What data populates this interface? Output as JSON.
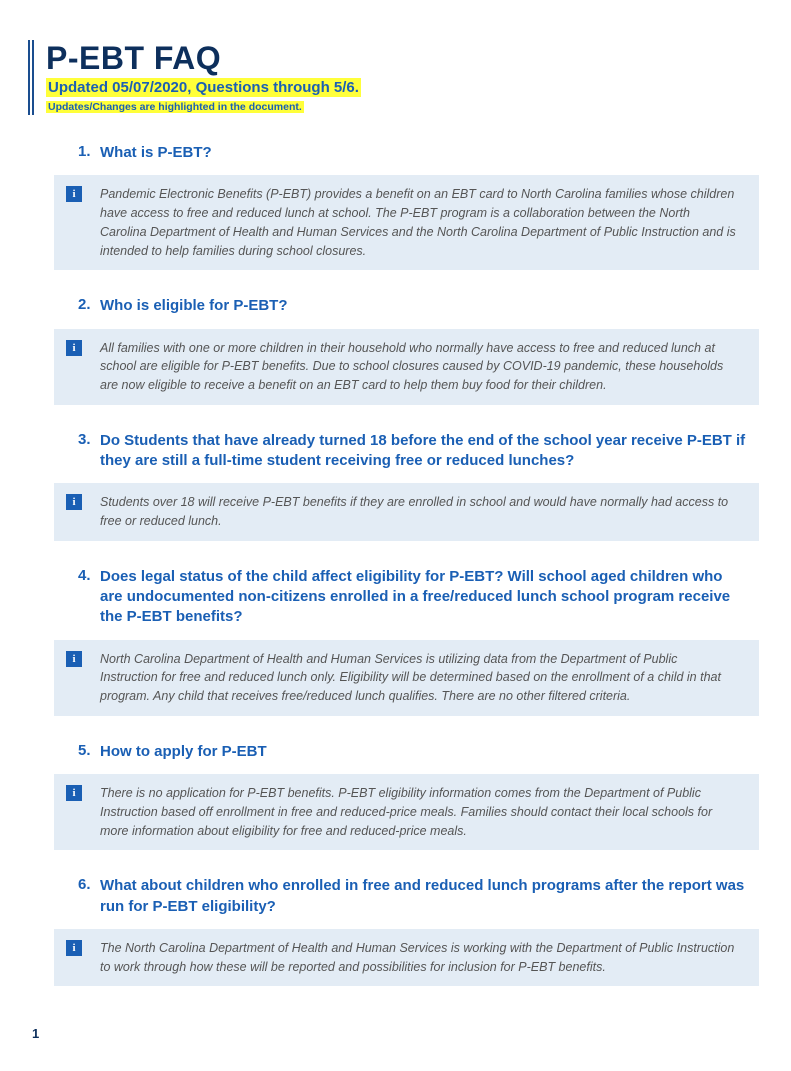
{
  "header": {
    "title": "P-EBT FAQ",
    "subtitle": "Updated 05/07/2020, Questions through 5/6.",
    "subnote": "Updates/Changes are highlighted in the document.",
    "accent_color": "#1a5fb4",
    "highlight_color": "#ffff3a",
    "title_color": "#0d2f5c"
  },
  "faq": [
    {
      "num": "1.",
      "question": "What is P-EBT?",
      "answer": "Pandemic Electronic Benefits (P-EBT) provides a benefit on an EBT card to North Carolina families whose children have access to free and reduced lunch at school. The P-EBT program is a collaboration between the North Carolina Department of Health and Human Services and the North Carolina Department of Public Instruction and is intended to help families during school closures."
    },
    {
      "num": "2.",
      "question": "Who is eligible for P-EBT?",
      "answer": "All families with one or more children in their household who normally have access to free and reduced lunch at school are eligible for P-EBT benefits. Due to school closures caused by COVID-19 pandemic, these households are now eligible to receive a benefit on an EBT card to help them buy food for their children."
    },
    {
      "num": "3.",
      "question": "Do Students that have already turned 18 before the end of the school year receive P-EBT if they are still a full-time student receiving free or reduced lunches?",
      "answer": "Students over 18 will receive P-EBT benefits if they are enrolled in school and would have normally had access to free or reduced lunch."
    },
    {
      "num": "4.",
      "question": "Does legal status of the child affect eligibility for P-EBT? Will school aged children who are undocumented non-citizens enrolled in a free/reduced lunch school program receive the P-EBT benefits?",
      "answer": "North Carolina Department of Health and Human Services is utilizing data from the Department of Public Instruction for free and reduced lunch only. Eligibility will be determined based on the enrollment of a child in that program. Any child that receives free/reduced lunch qualifies. There are no other filtered criteria."
    },
    {
      "num": "5.",
      "question": "How to apply for P-EBT",
      "answer": "There is no application for P-EBT benefits. P-EBT eligibility information comes from the Department of Public Instruction based off enrollment in free and reduced-price meals. Families should contact their local schools for more information about eligibility for free and reduced-price meals."
    },
    {
      "num": "6.",
      "question": "What about children who enrolled in free and reduced lunch programs after the report was run for P-EBT eligibility?",
      "answer": "The North Carolina Department of Health and Human Services is working with the Department of Public Instruction to work through how these will be reported and possibilities for inclusion for P-EBT benefits."
    }
  ],
  "answer_bg": "#e3ecf5",
  "page_number": "1"
}
